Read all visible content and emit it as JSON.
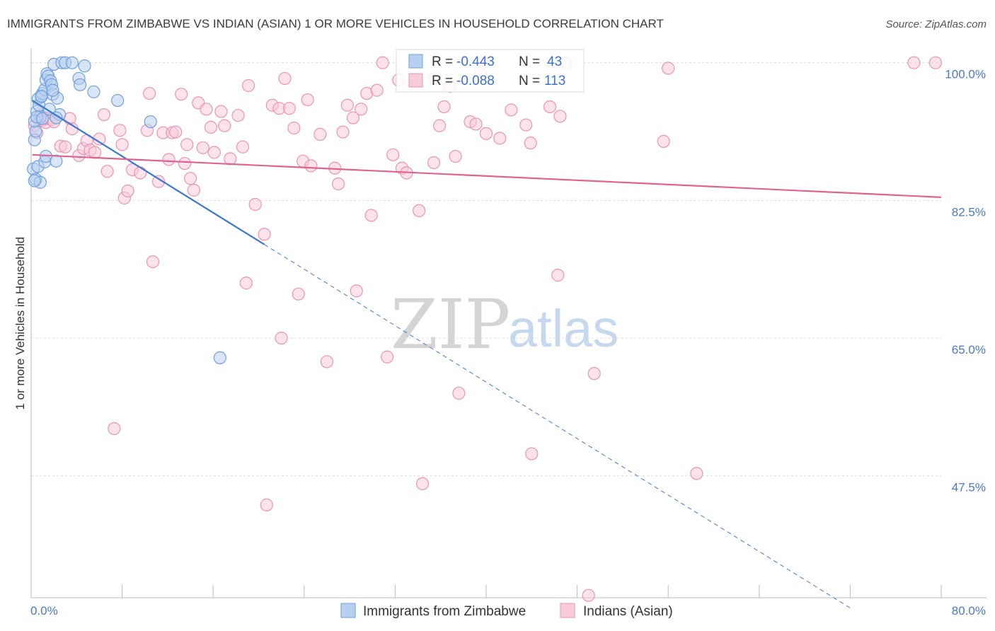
{
  "chart_data": {
    "type": "scatter",
    "title": "IMMIGRANTS FROM ZIMBABWE VS INDIAN (ASIAN) 1 OR MORE VEHICLES IN HOUSEHOLD CORRELATION CHART",
    "source": "Source: ZipAtlas.com",
    "xlabel": "",
    "ylabel": "1 or more Vehicles in Household",
    "xlim": [
      0,
      80
    ],
    "ylim": [
      32,
      101.5
    ],
    "x_tick_labels": {
      "left": "0.0%",
      "right": "80.0%"
    },
    "y_ticks": [
      {
        "value": 100.0,
        "label": "100.0%"
      },
      {
        "value": 82.5,
        "label": "82.5%"
      },
      {
        "value": 65.0,
        "label": "65.0%"
      },
      {
        "value": 47.5,
        "label": "47.5%"
      }
    ],
    "grid": true,
    "watermark": {
      "zip": "ZIP",
      "atlas": "atlas"
    },
    "legend": {
      "placement": "top-center",
      "rows": [
        {
          "r_label": "R = ",
          "r_value": "-0.443",
          "n_label": "N = ",
          "n_value": "43"
        },
        {
          "r_label": "R = ",
          "r_value": "-0.088",
          "n_label": "N = ",
          "n_value": "113"
        }
      ]
    },
    "series": [
      {
        "name": "Immigrants from Zimbabwe",
        "color": "#6fa0dc",
        "fill": "#b8d0f0",
        "line_color": "#3a78d0",
        "trend": {
          "x_start": 0.1,
          "y_start": 95.2,
          "x_solid_end": 20.5,
          "x_end": 72.0
        },
        "points": [
          [
            0.2,
            86.5
          ],
          [
            0.3,
            90.2
          ],
          [
            0.4,
            91.3
          ],
          [
            0.5,
            93.8
          ],
          [
            0.6,
            95.4
          ],
          [
            0.7,
            94.6
          ],
          [
            0.8,
            93.1
          ],
          [
            0.9,
            95.8
          ],
          [
            1.0,
            96.1
          ],
          [
            1.2,
            96.6
          ],
          [
            1.3,
            97.8
          ],
          [
            1.4,
            98.6
          ],
          [
            1.5,
            98.3
          ],
          [
            1.7,
            97.7
          ],
          [
            1.8,
            97.2
          ],
          [
            1.9,
            96.0
          ],
          [
            2.0,
            99.8
          ],
          [
            2.3,
            95.5
          ],
          [
            2.5,
            93.4
          ],
          [
            2.7,
            100.0
          ],
          [
            3.0,
            100.0
          ],
          [
            3.6,
            100.0
          ],
          [
            4.2,
            98.0
          ],
          [
            4.3,
            97.2
          ],
          [
            4.7,
            99.6
          ],
          [
            5.5,
            96.3
          ],
          [
            7.6,
            95.2
          ],
          [
            10.5,
            92.5
          ],
          [
            0.3,
            92.6
          ],
          [
            0.4,
            85.2
          ],
          [
            0.6,
            86.8
          ],
          [
            0.8,
            84.8
          ],
          [
            1.2,
            87.4
          ],
          [
            1.3,
            88.1
          ],
          [
            2.2,
            87.5
          ],
          [
            0.5,
            93.1
          ],
          [
            1.0,
            92.9
          ],
          [
            1.6,
            94.1
          ],
          [
            2.2,
            93.0
          ],
          [
            0.9,
            95.7
          ],
          [
            0.3,
            85.0
          ],
          [
            1.9,
            96.5
          ],
          [
            16.6,
            62.5
          ]
        ]
      },
      {
        "name": "Indians (Asian)",
        "color": "#e994b4",
        "fill": "#f7cbdb",
        "line_color": "#e0628e",
        "trend": {
          "x_start": 0.1,
          "y_start": 88.3,
          "x_solid_end": 80.0,
          "x_end": 80.0
        },
        "points": [
          [
            0.3,
            92.0
          ],
          [
            0.5,
            91.1
          ],
          [
            0.8,
            93.3
          ],
          [
            1.0,
            92.7
          ],
          [
            1.2,
            93.0
          ],
          [
            1.3,
            92.4
          ],
          [
            1.5,
            92.9
          ],
          [
            1.8,
            92.8
          ],
          [
            2.0,
            92.5
          ],
          [
            2.6,
            89.4
          ],
          [
            3.0,
            89.3
          ],
          [
            3.4,
            92.9
          ],
          [
            3.6,
            91.6
          ],
          [
            4.2,
            88.2
          ],
          [
            4.6,
            89.1
          ],
          [
            4.9,
            90.1
          ],
          [
            5.2,
            88.9
          ],
          [
            5.6,
            88.6
          ],
          [
            6.0,
            90.3
          ],
          [
            6.4,
            93.4
          ],
          [
            6.7,
            86.2
          ],
          [
            7.8,
            91.4
          ],
          [
            8.0,
            89.6
          ],
          [
            8.2,
            82.8
          ],
          [
            8.5,
            83.7
          ],
          [
            8.9,
            86.4
          ],
          [
            9.6,
            86.0
          ],
          [
            10.2,
            91.4
          ],
          [
            10.4,
            96.1
          ],
          [
            10.7,
            74.7
          ],
          [
            11.2,
            84.9
          ],
          [
            11.6,
            91.1
          ],
          [
            12.1,
            87.7
          ],
          [
            12.4,
            91.1
          ],
          [
            12.7,
            91.2
          ],
          [
            13.2,
            96.0
          ],
          [
            13.5,
            87.2
          ],
          [
            13.7,
            89.6
          ],
          [
            14.0,
            85.3
          ],
          [
            14.3,
            83.8
          ],
          [
            14.7,
            94.9
          ],
          [
            15.1,
            89.2
          ],
          [
            15.4,
            94.1
          ],
          [
            15.8,
            91.8
          ],
          [
            16.1,
            88.6
          ],
          [
            16.7,
            93.8
          ],
          [
            17.0,
            92.0
          ],
          [
            17.5,
            87.8
          ],
          [
            18.2,
            93.3
          ],
          [
            18.6,
            89.3
          ],
          [
            19.1,
            97.1
          ],
          [
            19.7,
            82.0
          ],
          [
            20.5,
            78.2
          ],
          [
            18.9,
            72.0
          ],
          [
            21.2,
            94.6
          ],
          [
            21.8,
            94.2
          ],
          [
            22.3,
            98.0
          ],
          [
            22.7,
            94.2
          ],
          [
            23.1,
            91.7
          ],
          [
            23.5,
            70.6
          ],
          [
            23.9,
            87.5
          ],
          [
            24.3,
            95.3
          ],
          [
            24.6,
            86.9
          ],
          [
            25.4,
            90.9
          ],
          [
            26.0,
            62.0
          ],
          [
            26.7,
            86.6
          ],
          [
            27.0,
            84.6
          ],
          [
            27.4,
            91.2
          ],
          [
            27.8,
            94.6
          ],
          [
            28.3,
            93.0
          ],
          [
            28.6,
            71.0
          ],
          [
            29.0,
            94.1
          ],
          [
            29.5,
            96.1
          ],
          [
            29.9,
            80.6
          ],
          [
            30.4,
            96.5
          ],
          [
            30.9,
            100.0
          ],
          [
            31.3,
            62.6
          ],
          [
            31.8,
            88.3
          ],
          [
            32.3,
            97.8
          ],
          [
            32.6,
            86.6
          ],
          [
            33.0,
            86.0
          ],
          [
            34.1,
            81.2
          ],
          [
            34.4,
            46.5
          ],
          [
            35.4,
            87.3
          ],
          [
            35.9,
            92.0
          ],
          [
            36.3,
            94.4
          ],
          [
            37.3,
            88.1
          ],
          [
            37.6,
            58.0
          ],
          [
            38.6,
            92.5
          ],
          [
            39.1,
            92.2
          ],
          [
            39.5,
            98.6
          ],
          [
            40.0,
            91.0
          ],
          [
            41.2,
            90.4
          ],
          [
            42.2,
            94.0
          ],
          [
            43.5,
            92.1
          ],
          [
            43.9,
            89.8
          ],
          [
            44.0,
            50.3
          ],
          [
            45.6,
            94.4
          ],
          [
            46.3,
            73.0
          ],
          [
            46.5,
            93.2
          ],
          [
            47.0,
            100.0
          ],
          [
            49.5,
            60.5
          ],
          [
            55.6,
            90.0
          ],
          [
            56.0,
            99.3
          ],
          [
            58.5,
            47.8
          ],
          [
            77.6,
            100.0
          ],
          [
            79.5,
            100.0
          ],
          [
            7.3,
            53.5
          ],
          [
            20.7,
            43.8
          ],
          [
            22.0,
            65.0
          ],
          [
            49.0,
            32.3
          ],
          [
            35.5,
            98.0
          ],
          [
            36.8,
            97.0
          ]
        ]
      }
    ]
  }
}
